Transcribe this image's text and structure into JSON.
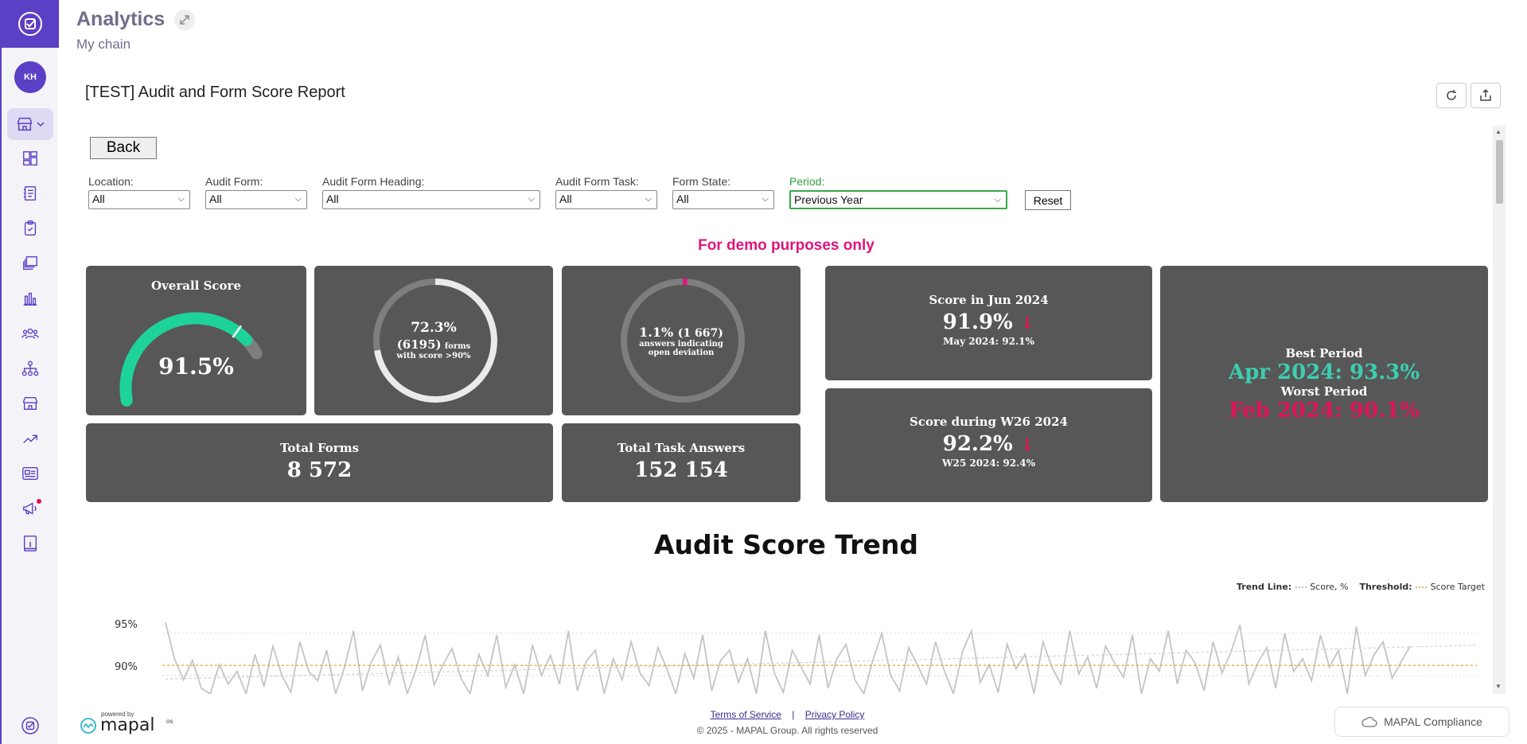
{
  "header": {
    "title": "Analytics",
    "subtitle": "My chain"
  },
  "user": {
    "initials": "KH"
  },
  "report": {
    "title": "[TEST] Audit and Form Score Report",
    "back_label": "Back",
    "reset_label": "Reset",
    "demo_notice": "For demo purposes only",
    "filters": [
      {
        "label": "Location:",
        "value": "All"
      },
      {
        "label": "Audit Form:",
        "value": "All"
      },
      {
        "label": "Audit Form Heading:",
        "value": "All"
      },
      {
        "label": "Audit Form Task:",
        "value": "All"
      },
      {
        "label": "Form State:",
        "value": "All"
      },
      {
        "label": "Period:",
        "value": "Previous Year"
      }
    ],
    "overall": {
      "label": "Overall Score",
      "value": "91.5%",
      "fraction": 0.915
    },
    "forms_high": {
      "pct": "72.3%",
      "count": "(6195)",
      "count_suffix": "forms",
      "line2": "with score >90%",
      "fraction": 0.723
    },
    "deviation": {
      "pct": "1.1%",
      "count": "(1 667)",
      "line1": "answers indicating",
      "line2": "open deviation",
      "fraction": 0.011
    },
    "total_forms": {
      "label": "Total Forms",
      "value": "8 572"
    },
    "total_answers": {
      "label": "Total Task Answers",
      "value": "152 154"
    },
    "month": {
      "label": "Score in Jun 2024",
      "value": "91.9%",
      "arrow": "↓",
      "prev": "May 2024: 92.1%"
    },
    "week": {
      "label": "Score during W26 2024",
      "value": "92.2%",
      "arrow": "↓",
      "prev": "W25 2024: 92.4%"
    },
    "best": {
      "label": "Best Period",
      "value": "Apr 2024: 93.3%",
      "color": "#3ccfb0"
    },
    "worst": {
      "label": "Worst Period",
      "value": "Feb 2024: 90.1%",
      "color": "#e0145c"
    }
  },
  "chart_data": {
    "type": "line",
    "title": "Audit Score Trend",
    "legend": [
      {
        "group": "Trend Line:",
        "name": "Score, %"
      },
      {
        "group": "Threshold:",
        "name": "Score Target"
      }
    ],
    "y_ticks": [
      "95%",
      "90%"
    ],
    "ylim": [
      85,
      98
    ],
    "series": [
      {
        "name": "Score",
        "values": [
          96.3,
          92.0,
          89.5,
          91.8,
          88.5,
          87.0,
          91.3,
          89.0,
          90.5,
          86.2,
          92.5,
          88.7,
          93.5,
          90.0,
          88.0,
          94.0,
          90.5,
          89.4,
          93.0,
          87.3,
          91.0,
          95.3,
          88.2,
          91.6,
          93.6,
          89.0,
          92.2,
          86.6,
          90.8,
          94.8,
          88.9,
          91.3,
          93.2,
          89.7,
          87.5,
          92.5,
          90.0,
          94.8,
          88.6,
          91.3,
          86.6,
          93.6,
          90.0,
          92.4,
          89.0,
          95.3,
          88.2,
          91.7,
          93.0,
          87.3,
          92.0,
          89.5,
          94.0,
          90.3,
          88.8,
          93.3,
          90.8,
          86.2,
          92.6,
          89.7,
          94.8,
          88.2,
          91.8,
          93.0,
          89.2,
          92.0,
          87.4,
          95.3,
          90.3,
          88.0,
          93.0,
          91.0,
          89.0,
          94.8,
          88.5,
          92.0,
          93.7,
          89.5,
          86.6,
          91.8,
          95.0,
          90.0,
          88.2,
          93.3,
          91.2,
          89.0,
          94.0,
          90.5,
          87.2,
          92.8,
          95.3,
          89.2,
          91.3,
          88.0,
          93.7,
          90.8,
          92.5,
          86.0,
          94.0,
          91.0,
          89.0,
          95.3,
          90.2,
          92.2,
          88.5,
          93.5,
          91.5,
          89.8,
          94.8,
          87.0,
          92.0,
          90.5,
          95.3,
          89.0,
          93.0,
          91.5,
          88.2,
          94.0,
          90.3,
          92.8,
          96.0,
          89.0,
          91.5,
          93.3,
          88.5,
          95.0,
          90.5,
          92.0,
          89.4,
          94.8,
          91.0,
          93.0,
          87.5,
          95.8,
          90.0,
          92.5,
          94.0,
          89.7,
          91.6,
          93.5
        ]
      },
      {
        "name": "Trend",
        "values": [
          89.6,
          93.6
        ]
      },
      {
        "name": "Target",
        "values": [
          91.2,
          91.2
        ]
      }
    ]
  },
  "footer": {
    "powered_by": "powered by",
    "brand": "mapal",
    "brand_suffix": "os",
    "terms": "Terms of Service",
    "sep": "|",
    "privacy": "Privacy Policy",
    "copyright": "© 2025 - MAPAL Group. All rights reserved",
    "compliance": "MAPAL Compliance"
  },
  "colors": {
    "accent": "#5b3fc4",
    "card": "#575757",
    "gauge": "#1ed39a",
    "magenta": "#e0147c",
    "target": "#e8a13a"
  }
}
